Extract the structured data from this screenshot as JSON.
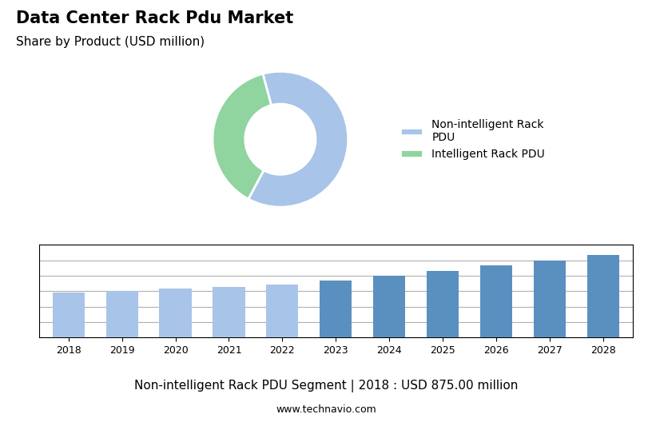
{
  "chart_data": [
    {
      "type": "pie",
      "title": "Data Center Rack Pdu Market",
      "subtitle": "Share by Product (USD million)",
      "categories": [
        "Non-intelligent Rack\nPDU",
        "Intelligent Rack PDU"
      ],
      "values": [
        62,
        38
      ],
      "colors": [
        "#a8c4e8",
        "#90d4a0"
      ],
      "legend": "center left"
    },
    {
      "type": "bar",
      "categories": [
        "2018",
        "2019",
        "2020",
        "2021",
        "2022",
        "2023",
        "2024",
        "2025",
        "2026",
        "2027",
        "2028"
      ],
      "values": [
        875,
        910,
        945,
        985,
        1030,
        1100,
        1200,
        1300,
        1400,
        1500,
        1600
      ],
      "colors": [
        "#a8c4e8",
        "#a8c4e8",
        "#a8c4e8",
        "#a8c4e8",
        "#a8c4e8",
        "#5a90c0",
        "#5a90c0",
        "#5a90c0",
        "#5a90c0",
        "#5a90c0",
        "#5a90c0"
      ],
      "ylim": [
        0,
        1800
      ],
      "yticks": [
        0,
        300,
        600,
        900,
        1200,
        1500,
        1800
      ],
      "grid": true,
      "tick_labels": "x",
      "annotations": [
        "Non-intelligent Rack PDU Segment | 2018 : USD 875.00 million",
        "www.technavio.com"
      ]
    }
  ]
}
